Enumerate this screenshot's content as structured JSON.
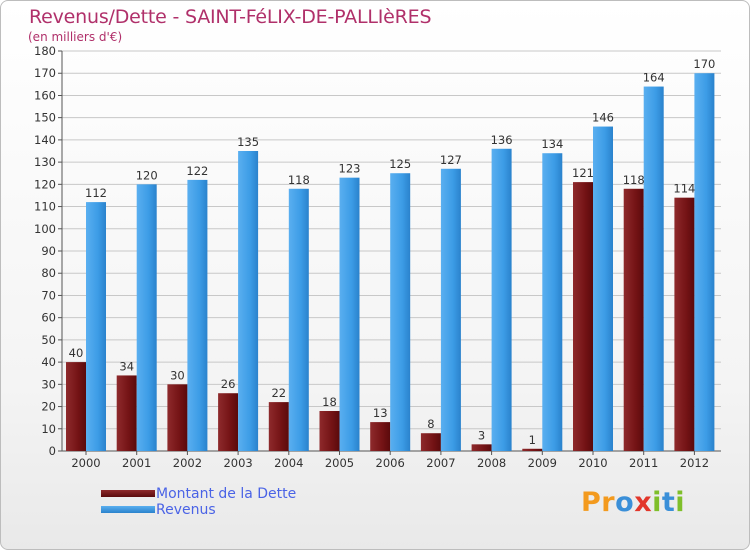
{
  "title": "Revenus/Dette - SAINT-FéLIX-DE-PALLIèRES",
  "subtitle": "(en milliers d'€)",
  "logo": "Proxiti",
  "colors": {
    "dette": "#7a1416",
    "revenus": "#3f9fe6",
    "grid": "#c8c8c8",
    "title": "#b0306a",
    "legend_text": "#4a63e6"
  },
  "chart_data": {
    "type": "bar",
    "categories": [
      "2000",
      "2001",
      "2002",
      "2003",
      "2004",
      "2005",
      "2006",
      "2007",
      "2008",
      "2009",
      "2010",
      "2011",
      "2012"
    ],
    "series": [
      {
        "name": "Montant de la Dette",
        "values": [
          40,
          34,
          30,
          26,
          22,
          18,
          13,
          8,
          3,
          1,
          121,
          118,
          114
        ]
      },
      {
        "name": "Revenus",
        "values": [
          112,
          120,
          122,
          135,
          118,
          123,
          125,
          127,
          136,
          134,
          146,
          164,
          170
        ]
      }
    ],
    "ylim": [
      0,
      180
    ],
    "yticks": [
      0,
      10,
      20,
      30,
      40,
      50,
      60,
      70,
      80,
      90,
      100,
      110,
      120,
      130,
      140,
      150,
      160,
      170,
      180
    ],
    "grid": true,
    "legend": "bottom-left"
  }
}
